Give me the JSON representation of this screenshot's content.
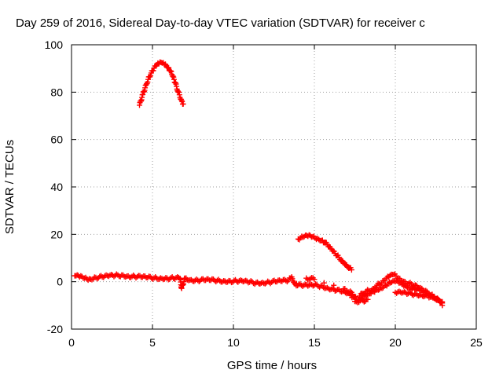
{
  "chart_data": {
    "type": "scatter",
    "title": "Day 259 of 2016, Sidereal Day-to-day VTEC variation (SDTVAR) for receiver c",
    "xlabel": "GPS time / hours",
    "ylabel": "SDTVAR / TECUs",
    "xlim": [
      0,
      25
    ],
    "ylim": [
      -20,
      100
    ],
    "xticks": [
      0,
      5,
      10,
      15,
      20,
      25
    ],
    "yticks": [
      -20,
      0,
      20,
      40,
      60,
      80,
      100
    ],
    "grid": true,
    "marker": "+",
    "colors": {
      "series": "#ff0000"
    },
    "series": [
      {
        "values": [
          [
            4.2,
            74.5
          ],
          [
            4.4,
            79
          ],
          [
            4.6,
            83
          ],
          [
            4.8,
            86.5
          ],
          [
            5.0,
            89
          ],
          [
            5.2,
            91
          ],
          [
            5.4,
            92
          ],
          [
            5.6,
            92.3
          ],
          [
            5.8,
            91.8
          ],
          [
            6.0,
            90.3
          ],
          [
            6.2,
            87.5
          ],
          [
            6.4,
            84
          ],
          [
            6.6,
            80
          ],
          [
            6.8,
            76.5
          ],
          [
            6.9,
            75
          ],
          [
            14.0,
            18
          ],
          [
            14.3,
            18.8
          ],
          [
            14.6,
            19.2
          ],
          [
            14.9,
            19
          ],
          [
            15.2,
            18.3
          ],
          [
            15.5,
            17.5
          ],
          [
            15.8,
            15.5
          ],
          [
            16.1,
            13
          ],
          [
            16.4,
            11
          ],
          [
            16.7,
            9
          ],
          [
            17.0,
            7
          ],
          [
            17.3,
            5
          ],
          [
            0.2,
            2.5
          ],
          [
            0.5,
            2
          ],
          [
            0.8,
            1.5
          ],
          [
            1.1,
            1.2
          ],
          [
            1.5,
            1.8
          ],
          [
            1.9,
            2
          ],
          [
            2.3,
            2.3
          ],
          [
            2.7,
            2.6
          ],
          [
            3.1,
            2.8
          ],
          [
            3.5,
            2.4
          ],
          [
            3.9,
            2.2
          ],
          [
            4.3,
            1.9
          ],
          [
            4.7,
            1.7
          ],
          [
            5.1,
            1.6
          ],
          [
            5.5,
            1.6
          ],
          [
            5.9,
            1.5
          ],
          [
            6.3,
            1.4
          ],
          [
            6.7,
            1.4
          ],
          [
            6.8,
            -2.8
          ],
          [
            7.0,
            1.5
          ],
          [
            7.4,
            0.8
          ],
          [
            7.8,
            0.6
          ],
          [
            8.2,
            0.6
          ],
          [
            8.6,
            0.6
          ],
          [
            9.0,
            0.5
          ],
          [
            9.4,
            0.4
          ],
          [
            9.8,
            0.3
          ],
          [
            10.2,
            0.2
          ],
          [
            10.6,
            0
          ],
          [
            11.0,
            -0.2
          ],
          [
            11.4,
            -0.4
          ],
          [
            11.8,
            -0.3
          ],
          [
            12.2,
            -0.2
          ],
          [
            12.6,
            0
          ],
          [
            13.0,
            0.2
          ],
          [
            13.4,
            0.6
          ],
          [
            13.6,
            2
          ],
          [
            13.8,
            -1
          ],
          [
            14.2,
            -1.5
          ],
          [
            14.6,
            -1.8
          ],
          [
            15.0,
            -1.5
          ],
          [
            15.4,
            -1.8
          ],
          [
            15.8,
            -2.5
          ],
          [
            16.2,
            -3.2
          ],
          [
            16.6,
            -4
          ],
          [
            17.0,
            -5
          ],
          [
            17.4,
            -6.5
          ],
          [
            13.9,
            -0.8
          ],
          [
            14.5,
            1.5
          ],
          [
            15.0,
            1
          ],
          [
            15.6,
            -0.5
          ],
          [
            16.2,
            -1.5
          ],
          [
            16.8,
            -3
          ],
          [
            17.3,
            -4.5
          ],
          [
            17.6,
            -7.5
          ],
          [
            17.9,
            -7
          ],
          [
            18.2,
            -6
          ],
          [
            18.5,
            -5
          ],
          [
            18.8,
            -3.5
          ],
          [
            19.1,
            -2.5
          ],
          [
            19.4,
            -1.5
          ],
          [
            19.7,
            -0.5
          ],
          [
            20.0,
            0
          ],
          [
            20.3,
            -0.5
          ],
          [
            20.6,
            -1.5
          ],
          [
            20.9,
            -2.5
          ],
          [
            21.2,
            -3
          ],
          [
            21.5,
            -3.8
          ],
          [
            21.8,
            -4.5
          ],
          [
            22.1,
            -5.5
          ],
          [
            22.4,
            -6.5
          ],
          [
            22.7,
            -8
          ],
          [
            22.9,
            -9
          ],
          [
            17.8,
            -6
          ],
          [
            18.2,
            -4
          ],
          [
            18.6,
            -3
          ],
          [
            19.0,
            -1
          ],
          [
            19.3,
            0.5
          ],
          [
            19.6,
            2
          ],
          [
            19.9,
            3
          ],
          [
            20.2,
            1.5
          ],
          [
            20.6,
            0
          ],
          [
            21.0,
            -1
          ],
          [
            21.4,
            -2.5
          ],
          [
            21.8,
            -4
          ],
          [
            22.2,
            -5.5
          ],
          [
            22.6,
            -7
          ],
          [
            22.9,
            -8.5
          ],
          [
            20.0,
            -4.5
          ],
          [
            20.4,
            -4.8
          ],
          [
            20.8,
            -5
          ],
          [
            21.2,
            -5.2
          ],
          [
            21.6,
            -5.5
          ],
          [
            22.0,
            -6
          ],
          [
            22.4,
            -7
          ],
          [
            22.8,
            -8.5
          ],
          [
            22.9,
            -10
          ],
          [
            17.5,
            -8.3
          ],
          [
            18.0,
            -8
          ],
          [
            18.3,
            -7.5
          ]
        ]
      }
    ]
  }
}
